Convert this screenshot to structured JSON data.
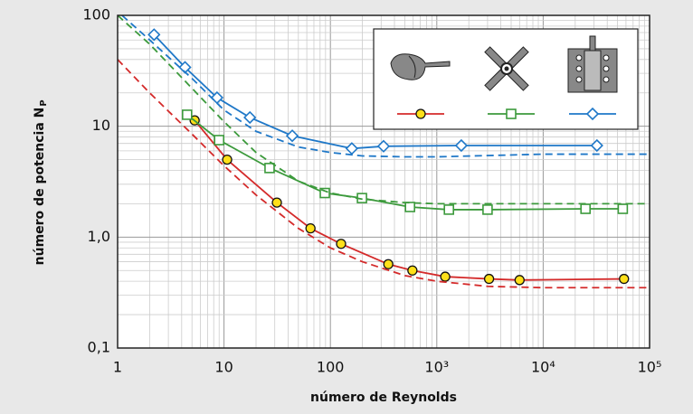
{
  "chart_data": {
    "type": "line",
    "xlabel": "número de Reynolds",
    "ylabel": "número de potencia N",
    "ylabel_sub": "P",
    "log_x": true,
    "log_y": true,
    "grid": true,
    "minor_grid": true,
    "legend": "upper right",
    "xlim": [
      1,
      100000
    ],
    "ylim": [
      0.1,
      100
    ],
    "xticks": [
      1,
      10,
      100,
      {
        "value": 1000,
        "label": "10³"
      },
      {
        "value": 10000,
        "label": "10⁴"
      },
      {
        "value": 100000,
        "label": "10⁵"
      }
    ],
    "yticks": [
      {
        "value": 0.1,
        "label": "0,1"
      },
      {
        "value": 1,
        "label": "1,0"
      },
      10,
      100
    ],
    "series": [
      {
        "color": "#d42a2a",
        "marker": "circle",
        "marker_fill": "#ffe01a",
        "dashed": false,
        "x": [
          5.3,
          10.7,
          31.4,
          65,
          126,
          350,
          590,
          1200,
          3100,
          6000,
          57500
        ],
        "values": [
          11.3,
          5.0,
          2.05,
          1.2,
          0.87,
          0.57,
          0.5,
          0.44,
          0.42,
          0.41,
          0.42
        ]
      },
      {
        "color": "#3c9a3c",
        "marker": "square",
        "marker_fill": "#ffffff",
        "dashed": false,
        "x": [
          4.5,
          9,
          26.8,
          88.6,
          198,
          560,
          1300,
          3000,
          25000,
          56000
        ],
        "values": [
          12.7,
          7.5,
          4.2,
          2.5,
          2.25,
          1.87,
          1.77,
          1.77,
          1.8,
          1.8
        ]
      },
      {
        "color": "#1f78c8",
        "marker": "diamond",
        "marker_fill": "#ffffff",
        "dashed": false,
        "x": [
          2.2,
          4.3,
          8.6,
          17.5,
          43.8,
          159,
          316,
          1700,
          32000
        ],
        "values": [
          67,
          34,
          18.1,
          12,
          8.2,
          6.3,
          6.6,
          6.7,
          6.7
        ]
      },
      {
        "color": "#d42a2a",
        "marker": "none",
        "dashed": true,
        "x": [
          1,
          2,
          5,
          10,
          20,
          50,
          100,
          200,
          500,
          1000,
          3000,
          10000,
          100000
        ],
        "values": [
          40,
          20,
          8.5,
          4.4,
          2.4,
          1.2,
          0.8,
          0.6,
          0.45,
          0.4,
          0.36,
          0.35,
          0.35
        ]
      },
      {
        "color": "#3c9a3c",
        "marker": "none",
        "dashed": true,
        "x": [
          1,
          2,
          5,
          10,
          20,
          50,
          100,
          200,
          500,
          1000,
          10000,
          100000
        ],
        "values": [
          100,
          55,
          22,
          11,
          5.8,
          3.2,
          2.5,
          2.2,
          2.05,
          2.0,
          2.0,
          2.0
        ]
      },
      {
        "color": "#1f78c8",
        "marker": "none",
        "dashed": true,
        "x": [
          1.1,
          2,
          5,
          10,
          20,
          50,
          100,
          200,
          500,
          1000,
          10000,
          100000
        ],
        "values": [
          100,
          60,
          27,
          14,
          9,
          6.5,
          5.8,
          5.4,
          5.3,
          5.3,
          5.6,
          5.6
        ]
      }
    ]
  }
}
